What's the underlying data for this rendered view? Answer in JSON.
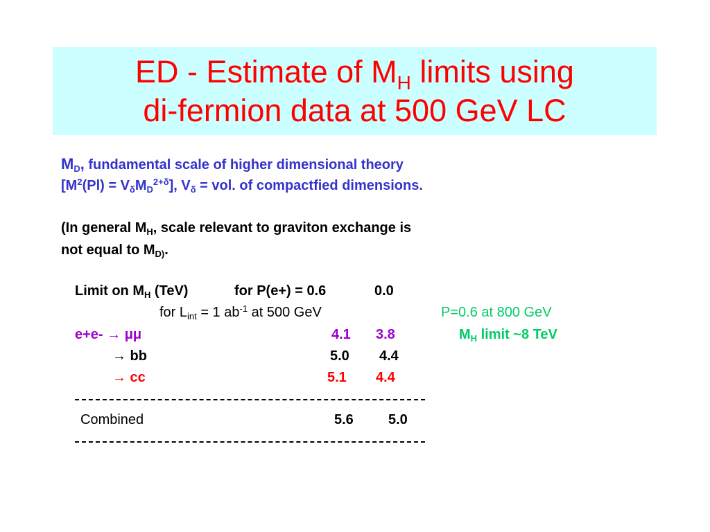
{
  "title": {
    "line1_pre": "ED - Estimate of M",
    "line1_sub": "H",
    "line1_post": " limits using",
    "line2": "di-fermion data at 500 GeV LC"
  },
  "definition": {
    "md_symbol": "M",
    "md_sub": "D",
    "md_comma": ",",
    "md_text": " fundamental scale of higher dimensional  theory",
    "formula_1": "[M",
    "formula_sup1": "2",
    "formula_2": "(Pl) = V",
    "formula_sub_delta1": "δ",
    "formula_3": "M",
    "formula_sub_d": "D",
    "formula_sup2": "2+δ",
    "formula_4": "], V",
    "formula_sub_delta2": "δ",
    "formula_5": " = vol. of compactfied dimensions."
  },
  "note": {
    "line1_pre": "(In general M",
    "line1_sub": "H",
    "line1_post": ", scale relevant to graviton exchange is",
    "line2_pre": "not equal to M",
    "line2_sub": "D)",
    "line2_post": "."
  },
  "table": {
    "header_pre": "Limit on M",
    "header_sub": "H",
    "header_unit": " (TeV)",
    "header_for": "for  P(e+) = 0.6",
    "header_col2": "0.0",
    "lumi_pre": "for L",
    "lumi_sub": "int",
    "lumi_mid": " = 1 ab",
    "lumi_sup": "-1",
    "lumi_post": " at 500 GeV",
    "rows": [
      {
        "label": "e+e- → μμ",
        "v1": "4.1",
        "v2": "3.8"
      },
      {
        "label": "→ bb",
        "v1": "5.0",
        "v2": "4.4"
      },
      {
        "label": "→ cc",
        "v1": "5.1",
        "v2": "4.4"
      }
    ],
    "combined_label": "Combined",
    "combined_v1": "5.6",
    "combined_v2": "5.0"
  },
  "side_note": {
    "line1": "P=0.6 at 800 GeV",
    "line2_pre": "M",
    "line2_sub": "H",
    "line2_post": "  limit ~8 TeV"
  },
  "colors": {
    "title": "#ff0000",
    "title_bg": "#ccffff",
    "definition": "#3333cc",
    "mumu": "#9900cc",
    "cc": "#ff0000",
    "side_note": "#00cc66"
  }
}
